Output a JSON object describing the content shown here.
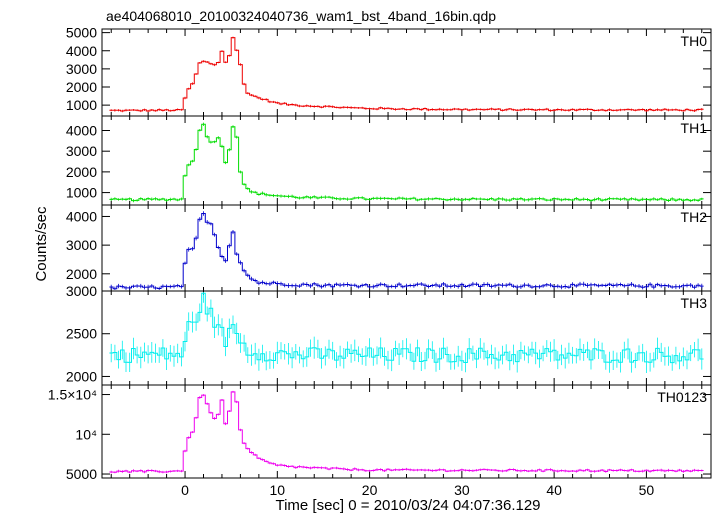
{
  "figure": {
    "title": "ae404068010_20100324040736_wam1_bst_4band_16bin.qdp",
    "xlabel": "Time [sec] 0 = 2010/03/24 04:07:36.129",
    "ylabel": "Counts/sec"
  },
  "chart_data": [
    {
      "type": "line",
      "panel": "TH0",
      "color": "#ee0000",
      "ylim": [
        400,
        5200
      ],
      "yticks": [
        {
          "v": 1000,
          "label": "1000"
        },
        {
          "v": 2000,
          "label": "2000"
        },
        {
          "v": 3000,
          "label": "3000"
        },
        {
          "v": 4000,
          "label": "4000"
        },
        {
          "v": 5000,
          "label": "5000"
        }
      ],
      "series": [
        {
          "base": 700,
          "noise": 45,
          "err": 60,
          "x": [
            -8,
            -0.2,
            0,
            0.5,
            1.0,
            1.5,
            2.0,
            2.5,
            3.0,
            3.5,
            4.0,
            4.2,
            4.6,
            5.0,
            5.3,
            5.6,
            5.9,
            6.2,
            6.6,
            7.0,
            7.5,
            8.0,
            9.0,
            10,
            11,
            12,
            14,
            16,
            18,
            20,
            25,
            30,
            40,
            56
          ],
          "y": [
            700,
            720,
            1400,
            2000,
            2300,
            3300,
            3400,
            3350,
            3250,
            3200,
            4000,
            3400,
            3300,
            4200,
            5000,
            4000,
            3600,
            2500,
            1800,
            1600,
            1500,
            1400,
            1250,
            1100,
            1050,
            1000,
            950,
            900,
            850,
            820,
            780,
            760,
            740,
            730
          ]
        }
      ]
    },
    {
      "type": "line",
      "panel": "TH1",
      "color": "#00dd00",
      "ylim": [
        400,
        4700
      ],
      "yticks": [
        {
          "v": 1000,
          "label": "1000"
        },
        {
          "v": 2000,
          "label": "2000"
        },
        {
          "v": 3000,
          "label": "3000"
        },
        {
          "v": 4000,
          "label": "4000"
        }
      ],
      "series": [
        {
          "base": 650,
          "noise": 50,
          "err": 70,
          "x": [
            -8,
            -0.2,
            0,
            0.5,
            1.0,
            1.5,
            2.0,
            2.5,
            3.0,
            3.5,
            4.0,
            4.3,
            4.7,
            5.0,
            5.3,
            5.6,
            6.0,
            6.5,
            7.0,
            8.0,
            9.0,
            10,
            12,
            15,
            20,
            30,
            56
          ],
          "y": [
            650,
            680,
            1800,
            2500,
            2600,
            3900,
            4300,
            3600,
            3300,
            3800,
            3200,
            2400,
            2700,
            3900,
            4400,
            3700,
            2000,
            1300,
            1050,
            950,
            900,
            850,
            780,
            740,
            700,
            680,
            650
          ]
        }
      ]
    },
    {
      "type": "line",
      "panel": "TH2",
      "color": "#0000cc",
      "ylim": [
        1400,
        4400
      ],
      "yticks": [
        {
          "v": 2000,
          "label": "2000"
        },
        {
          "v": 3000,
          "label": "3000"
        },
        {
          "v": 4000,
          "label": "4000"
        }
      ],
      "series": [
        {
          "base": 1520,
          "noise": 55,
          "err": 70,
          "x": [
            -8,
            -0.2,
            0,
            0.5,
            1.0,
            1.5,
            2.0,
            2.5,
            3.0,
            3.5,
            4.0,
            4.4,
            4.8,
            5.2,
            5.6,
            6.0,
            6.5,
            7.0,
            8.0,
            10,
            15,
            56
          ],
          "y": [
            1520,
            1540,
            2400,
            2900,
            2800,
            3800,
            4100,
            3700,
            3700,
            3000,
            2600,
            2500,
            3000,
            3500,
            2700,
            2400,
            2100,
            1850,
            1700,
            1650,
            1600,
            1580
          ]
        }
      ]
    },
    {
      "type": "line",
      "panel": "TH3",
      "color": "#00eeee",
      "ylim": [
        1900,
        3000
      ],
      "yticks": [
        {
          "v": 2000,
          "label": "2000"
        },
        {
          "v": 2500,
          "label": "2500"
        },
        {
          "v": 3000,
          "label": "3000"
        }
      ],
      "series": [
        {
          "base": 2250,
          "noise": 90,
          "err": 110,
          "x": [
            -8,
            -0.2,
            0,
            0.5,
            1.0,
            1.5,
            2.0,
            2.5,
            3.0,
            3.5,
            4.0,
            4.5,
            5.0,
            5.5,
            6.0,
            7.0,
            8.0,
            10,
            15,
            56
          ],
          "y": [
            2250,
            2260,
            2350,
            2650,
            2600,
            2800,
            2900,
            2750,
            2700,
            2600,
            2500,
            2400,
            2550,
            2600,
            2400,
            2300,
            2280,
            2260,
            2250,
            2250
          ]
        }
      ]
    },
    {
      "type": "line",
      "panel": "TH0123",
      "color": "#ee00ee",
      "ylim": [
        4500,
        16200
      ],
      "yticks": [
        {
          "v": 5000,
          "label": "5000"
        },
        {
          "v": 10000,
          "label": "10⁴"
        },
        {
          "v": 15000,
          "label": "1.5×10⁴"
        }
      ],
      "series": [
        {
          "base": 5300,
          "noise": 120,
          "err": 150,
          "x": [
            -8,
            -0.2,
            0,
            0.5,
            1.0,
            1.5,
            2.0,
            2.5,
            3.0,
            3.5,
            4.0,
            4.3,
            4.7,
            5.0,
            5.4,
            5.7,
            6.0,
            6.5,
            7.0,
            8.0,
            9.0,
            10,
            12,
            15,
            20,
            56
          ],
          "y": [
            5300,
            5350,
            8000,
            10000,
            10500,
            14500,
            15000,
            13500,
            12000,
            12200,
            14200,
            11200,
            11800,
            15000,
            15500,
            13500,
            10500,
            8500,
            7800,
            7000,
            6400,
            6100,
            5900,
            5700,
            5500,
            5400
          ]
        }
      ]
    }
  ],
  "xaxis": {
    "xlim": [
      -9,
      57
    ],
    "ticks": [
      {
        "v": 0,
        "label": "0"
      },
      {
        "v": 10,
        "label": "10"
      },
      {
        "v": 20,
        "label": "20"
      },
      {
        "v": 30,
        "label": "30"
      },
      {
        "v": 40,
        "label": "40"
      },
      {
        "v": 50,
        "label": "50"
      }
    ],
    "step": 0.4
  }
}
